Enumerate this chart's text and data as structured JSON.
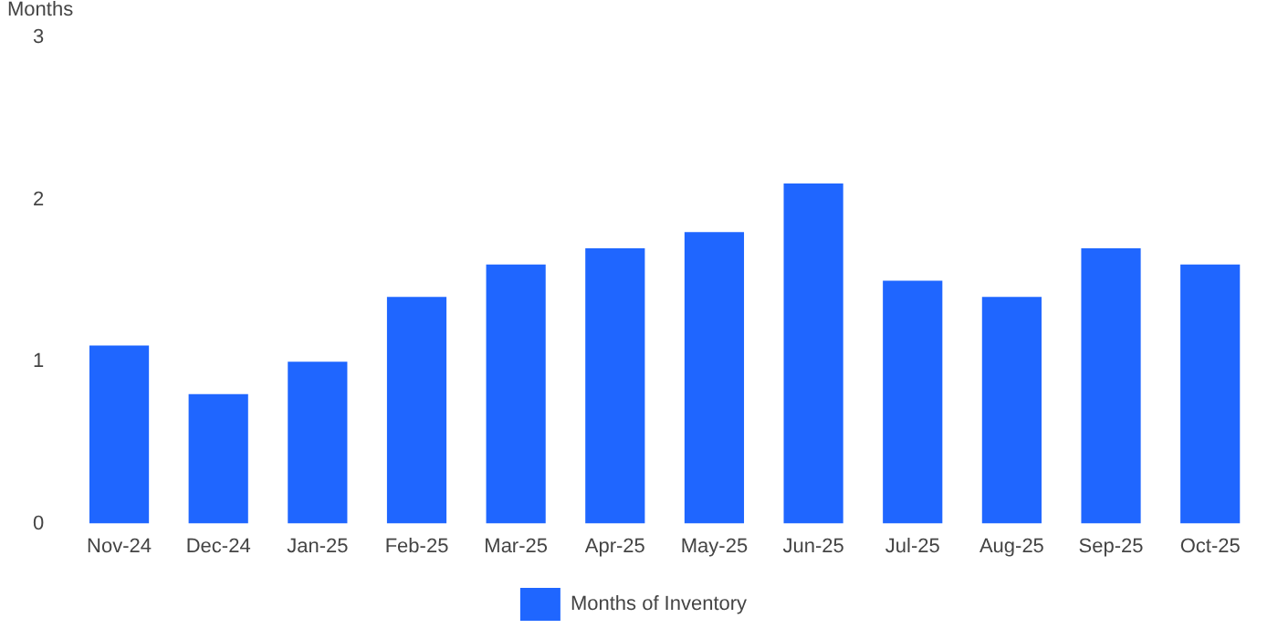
{
  "chart_data": {
    "type": "bar",
    "ylabel": "Months",
    "categories": [
      "Nov-24",
      "Dec-24",
      "Jan-25",
      "Feb-25",
      "Mar-25",
      "Apr-25",
      "May-25",
      "Jun-25",
      "Jul-25",
      "Aug-25",
      "Sep-25",
      "Oct-25"
    ],
    "series": [
      {
        "name": "Months of Inventory",
        "color": "#1f66ff",
        "values": [
          1.1,
          0.8,
          1.0,
          1.4,
          1.6,
          1.7,
          1.8,
          2.1,
          1.5,
          1.4,
          1.7,
          1.6
        ]
      }
    ],
    "ylim": [
      0,
      3
    ],
    "yticks": [
      0,
      1,
      2,
      3
    ],
    "grid": false,
    "legend": "bottom"
  }
}
